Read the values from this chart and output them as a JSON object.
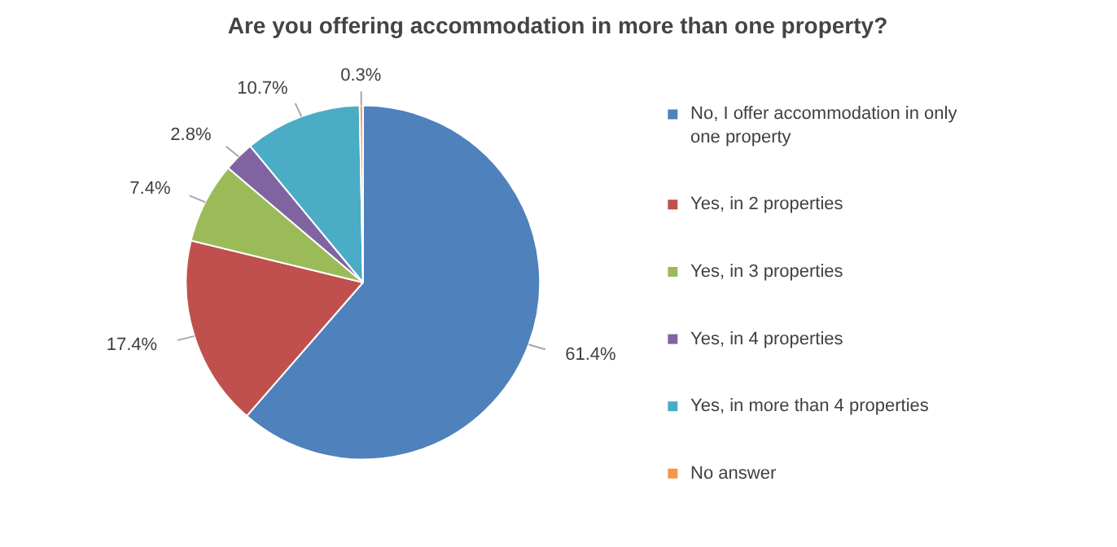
{
  "chart_data": {
    "type": "pie",
    "title": "Are you offering accommodation in more than one property?",
    "categories": [
      "No, I offer accommodation in only one property",
      "Yes, in 2 properties",
      "Yes, in 3 properties",
      "Yes, in 4 properties",
      "Yes, in more than 4 properties",
      "No answer"
    ],
    "values": [
      61.4,
      17.4,
      7.4,
      2.8,
      10.7,
      0.3
    ],
    "colors": [
      "#4f81bd",
      "#c0504d",
      "#9bbb59",
      "#8064a2",
      "#4bacc6",
      "#f79646"
    ],
    "value_labels": [
      "61.4%",
      "17.4%",
      "7.4%",
      "2.8%",
      "10.7%",
      "0.3%"
    ],
    "legend": "right"
  }
}
